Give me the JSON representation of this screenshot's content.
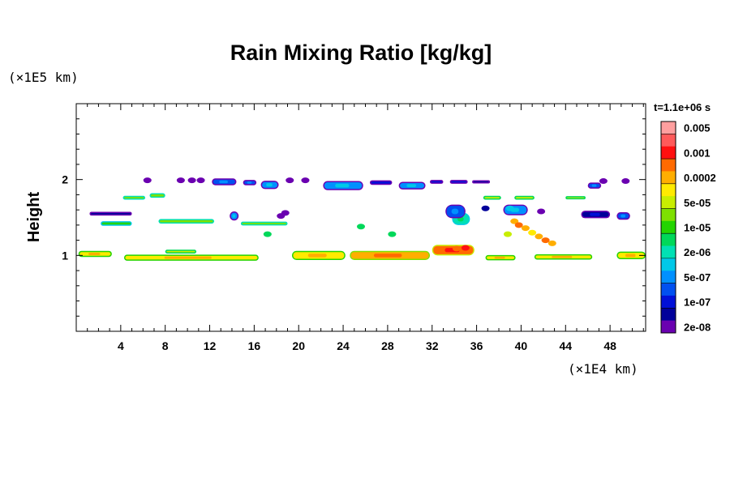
{
  "chart_data": {
    "type": "heatmap",
    "title": "Rain Mixing Ratio [kg/kg]",
    "xlabel": "",
    "ylabel": "Height",
    "x_unit": "(×1E4 km)",
    "y_unit": "(×1E5 km)",
    "time_label": "t=1.1e+06 s",
    "xlim": [
      0,
      51.2
    ],
    "ylim": [
      0,
      3
    ],
    "x_ticks": [
      4,
      8,
      12,
      16,
      20,
      24,
      28,
      32,
      36,
      40,
      44,
      48
    ],
    "x_tick_labels": [
      "4",
      "8",
      "12",
      "16",
      "20",
      "24",
      "28",
      "32",
      "36",
      "40",
      "44",
      "48"
    ],
    "y_ticks": [
      1,
      2
    ],
    "y_tick_labels": [
      "1",
      "2"
    ],
    "colorbar": {
      "labels": [
        "0.005",
        "0.001",
        "0.0002",
        "5e-05",
        "1e-05",
        "2e-06",
        "5e-07",
        "1e-07",
        "2e-08"
      ],
      "colors": [
        "#ff9f9f",
        "#ff5a5a",
        "#ff1010",
        "#ff6a00",
        "#ffae00",
        "#ffea00",
        "#c8ee00",
        "#7ee000",
        "#24d400",
        "#00d85a",
        "#00e0b4",
        "#00c8e8",
        "#0090ff",
        "#0050f0",
        "#0010d8",
        "#00009a",
        "#6a00b0"
      ]
    },
    "bands": [
      {
        "x": [
          0.2,
          3.2
        ],
        "y": 1.02,
        "level": 5,
        "thick": 0.08
      },
      {
        "x": [
          4.3,
          16.4
        ],
        "y": 0.97,
        "level": 5,
        "thick": 0.08
      },
      {
        "x": [
          8.0,
          10.8
        ],
        "y": 1.05,
        "level": 6,
        "thick": 0.05
      },
      {
        "x": [
          19.4,
          24.2
        ],
        "y": 1.0,
        "level": 5,
        "thick": 0.12
      },
      {
        "x": [
          24.6,
          31.8
        ],
        "y": 1.0,
        "level": 4,
        "thick": 0.12
      },
      {
        "x": [
          32.0,
          35.8
        ],
        "y": 1.07,
        "level": 3,
        "thick": 0.14
      },
      {
        "x": [
          36.8,
          39.5
        ],
        "y": 0.97,
        "level": 5,
        "thick": 0.07
      },
      {
        "x": [
          41.2,
          46.4
        ],
        "y": 0.98,
        "level": 5,
        "thick": 0.07
      },
      {
        "x": [
          48.6,
          51.2
        ],
        "y": 1.0,
        "level": 5,
        "thick": 0.1
      },
      {
        "x": [
          2.2,
          5.0
        ],
        "y": 1.42,
        "level": 8,
        "thick": 0.06
      },
      {
        "x": [
          7.4,
          12.4
        ],
        "y": 1.45,
        "level": 7,
        "thick": 0.06
      },
      {
        "x": [
          14.8,
          19.0
        ],
        "y": 1.42,
        "level": 7,
        "thick": 0.05
      },
      {
        "x": [
          1.2,
          5.0
        ],
        "y": 1.55,
        "level": 15,
        "thick": 0.05
      },
      {
        "x": [
          13.8,
          14.6
        ],
        "y": 1.52,
        "level": 12,
        "thick": 0.12
      },
      {
        "x": [
          33.8,
          35.4
        ],
        "y": 1.48,
        "level": 10,
        "thick": 0.16
      },
      {
        "x": [
          4.2,
          6.2
        ],
        "y": 1.76,
        "level": 7,
        "thick": 0.05
      },
      {
        "x": [
          6.6,
          8.0
        ],
        "y": 1.79,
        "level": 7,
        "thick": 0.06
      },
      {
        "x": [
          36.6,
          38.2
        ],
        "y": 1.76,
        "level": 6,
        "thick": 0.05
      },
      {
        "x": [
          39.4,
          41.2
        ],
        "y": 1.76,
        "level": 6,
        "thick": 0.05
      },
      {
        "x": [
          44.0,
          45.8
        ],
        "y": 1.76,
        "level": 6,
        "thick": 0.04
      },
      {
        "x": [
          12.2,
          14.4
        ],
        "y": 1.97,
        "level": 13,
        "thick": 0.09
      },
      {
        "x": [
          15.0,
          16.2
        ],
        "y": 1.96,
        "level": 13,
        "thick": 0.07
      },
      {
        "x": [
          16.6,
          18.2
        ],
        "y": 1.93,
        "level": 12,
        "thick": 0.11
      },
      {
        "x": [
          22.2,
          25.8
        ],
        "y": 1.92,
        "level": 12,
        "thick": 0.12
      },
      {
        "x": [
          26.4,
          28.4
        ],
        "y": 1.96,
        "level": 14,
        "thick": 0.06
      },
      {
        "x": [
          29.0,
          31.4
        ],
        "y": 1.92,
        "level": 12,
        "thick": 0.1
      },
      {
        "x": [
          31.8,
          33.0
        ],
        "y": 1.97,
        "level": 14,
        "thick": 0.05
      },
      {
        "x": [
          33.6,
          35.2
        ],
        "y": 1.97,
        "level": 14,
        "thick": 0.05
      },
      {
        "x": [
          35.6,
          37.2
        ],
        "y": 1.97,
        "level": 15,
        "thick": 0.04
      },
      {
        "x": [
          46.0,
          47.2
        ],
        "y": 1.92,
        "level": 13,
        "thick": 0.08
      },
      {
        "x": [
          45.4,
          48.0
        ],
        "y": 1.54,
        "level": 15,
        "thick": 0.1
      },
      {
        "x": [
          48.6,
          49.8
        ],
        "y": 1.52,
        "level": 13,
        "thick": 0.1
      },
      {
        "x": [
          33.2,
          35.0
        ],
        "y": 1.58,
        "level": 13,
        "thick": 0.18
      },
      {
        "x": [
          38.4,
          40.6
        ],
        "y": 1.6,
        "level": 12,
        "thick": 0.14
      }
    ],
    "cells": [
      {
        "x": 39.4,
        "y": 1.45,
        "level": 4
      },
      {
        "x": 39.8,
        "y": 1.4,
        "level": 3
      },
      {
        "x": 40.4,
        "y": 1.36,
        "level": 4
      },
      {
        "x": 41.0,
        "y": 1.3,
        "level": 5
      },
      {
        "x": 41.6,
        "y": 1.25,
        "level": 4
      },
      {
        "x": 42.2,
        "y": 1.2,
        "level": 3
      },
      {
        "x": 42.8,
        "y": 1.16,
        "level": 4
      },
      {
        "x": 38.8,
        "y": 1.28,
        "level": 6
      },
      {
        "x": 35.0,
        "y": 1.1,
        "level": 2
      },
      {
        "x": 34.2,
        "y": 1.09,
        "level": 3
      },
      {
        "x": 39.0,
        "y": 1.62,
        "level": 11
      },
      {
        "x": 36.8,
        "y": 1.62,
        "level": 15
      },
      {
        "x": 41.8,
        "y": 1.58,
        "level": 16
      },
      {
        "x": 47.4,
        "y": 1.98,
        "level": 16
      },
      {
        "x": 49.4,
        "y": 1.98,
        "level": 16
      },
      {
        "x": 6.4,
        "y": 1.99,
        "level": 16
      },
      {
        "x": 9.4,
        "y": 1.99,
        "level": 16
      },
      {
        "x": 10.4,
        "y": 1.99,
        "level": 16
      },
      {
        "x": 11.2,
        "y": 1.99,
        "level": 16
      },
      {
        "x": 20.6,
        "y": 1.99,
        "level": 16
      },
      {
        "x": 19.2,
        "y": 1.99,
        "level": 16
      },
      {
        "x": 18.4,
        "y": 1.52,
        "level": 16
      },
      {
        "x": 18.8,
        "y": 1.56,
        "level": 16
      },
      {
        "x": 17.2,
        "y": 1.28,
        "level": 9
      },
      {
        "x": 25.6,
        "y": 1.38,
        "level": 9
      },
      {
        "x": 28.4,
        "y": 1.28,
        "level": 9
      }
    ]
  }
}
